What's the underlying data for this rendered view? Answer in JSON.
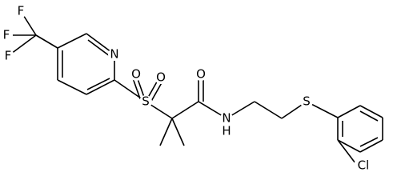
{
  "atoms": [
    "F",
    "F",
    "F",
    "N",
    "S",
    "O",
    "O",
    "O",
    "N",
    "H",
    "S",
    "Cl"
  ]
}
